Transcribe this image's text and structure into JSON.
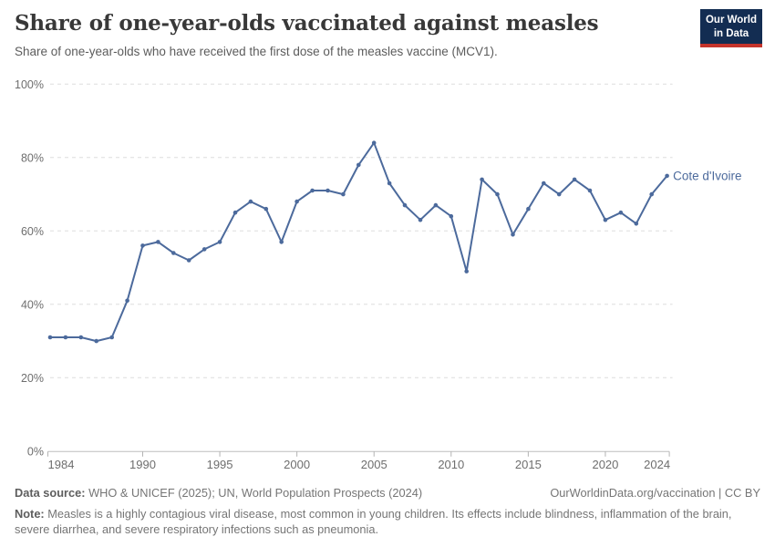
{
  "header": {
    "title": "Share of one-year-olds vaccinated against measles",
    "subtitle": "Share of one-year-olds who have received the first dose of the measles vaccine (MCV1)."
  },
  "logo": {
    "line1": "Our World",
    "line2": "in Data",
    "bg_color": "#132d52",
    "stripe_color": "#c5342b"
  },
  "chart_data": {
    "type": "line",
    "title": "Share of one-year-olds vaccinated against measles",
    "xlabel": "",
    "ylabel": "",
    "xlim": [
      1984,
      2024
    ],
    "ylim": [
      0,
      100
    ],
    "grid": "horizontal-dashed",
    "x_ticks": [
      1984,
      1990,
      1995,
      2000,
      2005,
      2010,
      2015,
      2020,
      2024
    ],
    "y_ticks": [
      0,
      20,
      40,
      60,
      80,
      100
    ],
    "y_tick_suffix": "%",
    "series": [
      {
        "name": "Cote d'Ivoire",
        "color": "#4C6A9C",
        "years": [
          1984,
          1985,
          1986,
          1987,
          1988,
          1989,
          1990,
          1991,
          1992,
          1993,
          1994,
          1995,
          1996,
          1997,
          1998,
          1999,
          2000,
          2001,
          2002,
          2003,
          2004,
          2005,
          2006,
          2007,
          2008,
          2009,
          2010,
          2011,
          2012,
          2013,
          2014,
          2015,
          2016,
          2017,
          2018,
          2019,
          2020,
          2021,
          2022,
          2023,
          2024
        ],
        "values": [
          31,
          31,
          31,
          30,
          31,
          41,
          56,
          57,
          54,
          52,
          55,
          57,
          65,
          68,
          66,
          57,
          68,
          71,
          71,
          70,
          78,
          84,
          73,
          67,
          63,
          67,
          64,
          49,
          74,
          70,
          59,
          66,
          73,
          70,
          74,
          71,
          63,
          65,
          62,
          70,
          75
        ]
      }
    ]
  },
  "footer": {
    "source_label": "Data source:",
    "source_text": "WHO & UNICEF (2025); UN, World Population Prospects (2024)",
    "attribution": "OurWorldinData.org/vaccination | CC BY",
    "note_label": "Note:",
    "note_text": "Measles is a highly contagious viral disease, most common in young children. Its effects include blindness, inflammation of the brain, severe diarrhea, and severe respiratory infections such as pneumonia."
  }
}
